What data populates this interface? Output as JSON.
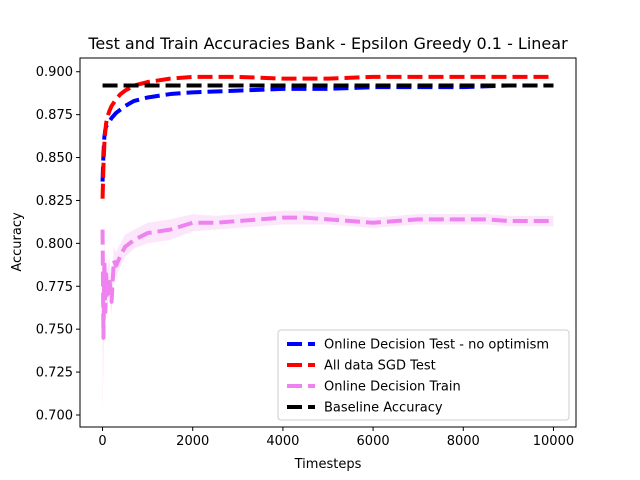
{
  "chart_data": {
    "type": "line",
    "title": "Test and Train Accuracies Bank - Epsilon Greedy 0.1 - Linear",
    "xlabel": "Timesteps",
    "ylabel": "Accuracy",
    "xlim": [
      -500,
      10500
    ],
    "ylim": [
      0.693,
      0.908
    ],
    "xticks": [
      0,
      2000,
      4000,
      6000,
      8000,
      10000
    ],
    "xtick_labels": [
      "0",
      "2000",
      "4000",
      "6000",
      "8000",
      "10000"
    ],
    "yticks": [
      0.7,
      0.725,
      0.75,
      0.775,
      0.8,
      0.825,
      0.85,
      0.875,
      0.9
    ],
    "ytick_labels": [
      "0.700",
      "0.725",
      "0.750",
      "0.775",
      "0.800",
      "0.825",
      "0.850",
      "0.875",
      "0.900"
    ],
    "grid": false,
    "legend_position": "lower-right",
    "series": [
      {
        "name": "Online Decision Test - no optimism",
        "color": "#0000ff",
        "linestyle": "dashed",
        "x": [
          0,
          20,
          40,
          60,
          80,
          100,
          150,
          200,
          300,
          400,
          500,
          700,
          1000,
          1500,
          2000,
          3000,
          4000,
          5000,
          6000,
          7000,
          8000,
          9000,
          10000
        ],
        "y": [
          0.836,
          0.852,
          0.862,
          0.866,
          0.868,
          0.869,
          0.871,
          0.873,
          0.876,
          0.878,
          0.88,
          0.883,
          0.885,
          0.887,
          0.888,
          0.889,
          0.89,
          0.89,
          0.891,
          0.891,
          0.891,
          0.892,
          0.892
        ]
      },
      {
        "name": "All data SGD Test",
        "color": "#ff0000",
        "linestyle": "dashed",
        "x": [
          0,
          20,
          40,
          60,
          80,
          100,
          150,
          200,
          300,
          400,
          500,
          700,
          1000,
          1500,
          2000,
          3000,
          4000,
          5000,
          6000,
          7000,
          8000,
          9000,
          10000
        ],
        "y": [
          0.826,
          0.845,
          0.858,
          0.865,
          0.87,
          0.873,
          0.877,
          0.88,
          0.884,
          0.887,
          0.889,
          0.892,
          0.894,
          0.896,
          0.897,
          0.897,
          0.896,
          0.896,
          0.897,
          0.897,
          0.897,
          0.897,
          0.897
        ]
      },
      {
        "name": "Online Decision Train",
        "color": "#ee82ee",
        "linestyle": "dashed",
        "x": [
          0,
          20,
          40,
          60,
          80,
          100,
          150,
          200,
          250,
          300,
          400,
          500,
          700,
          1000,
          1500,
          2000,
          2500,
          3000,
          3500,
          4000,
          4500,
          5000,
          5500,
          6000,
          6500,
          7000,
          7500,
          8000,
          8500,
          9000,
          9500,
          10000
        ],
        "y": [
          0.808,
          0.745,
          0.79,
          0.76,
          0.782,
          0.77,
          0.78,
          0.766,
          0.79,
          0.787,
          0.793,
          0.798,
          0.802,
          0.806,
          0.808,
          0.812,
          0.812,
          0.813,
          0.814,
          0.815,
          0.815,
          0.814,
          0.813,
          0.812,
          0.813,
          0.814,
          0.814,
          0.814,
          0.814,
          0.813,
          0.813,
          0.813
        ],
        "band_lower": [
          0.7,
          0.728,
          0.77,
          0.745,
          0.768,
          0.758,
          0.77,
          0.758,
          0.782,
          0.78,
          0.787,
          0.792,
          0.797,
          0.8,
          0.802,
          0.807,
          0.808,
          0.809,
          0.81,
          0.811,
          0.811,
          0.811,
          0.81,
          0.809,
          0.81,
          0.811,
          0.811,
          0.811,
          0.811,
          0.81,
          0.81,
          0.81
        ],
        "band_upper": [
          0.815,
          0.77,
          0.808,
          0.778,
          0.795,
          0.785,
          0.792,
          0.778,
          0.798,
          0.795,
          0.8,
          0.805,
          0.808,
          0.812,
          0.814,
          0.817,
          0.816,
          0.817,
          0.818,
          0.819,
          0.819,
          0.818,
          0.816,
          0.815,
          0.816,
          0.817,
          0.817,
          0.817,
          0.817,
          0.816,
          0.816,
          0.816
        ]
      },
      {
        "name": "Baseline Accuracy",
        "color": "#000000",
        "linestyle": "dashed",
        "x": [
          0,
          10000
        ],
        "y": [
          0.892,
          0.892
        ]
      }
    ]
  }
}
